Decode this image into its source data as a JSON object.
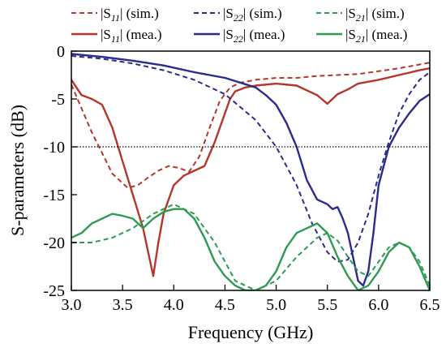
{
  "chart_data": {
    "type": "line",
    "xlabel": "Frequency (GHz)",
    "ylabel": "S-parameters (dB)",
    "xlim": [
      3.0,
      6.5
    ],
    "ylim": [
      -25,
      0
    ],
    "xticks": [
      "3.0",
      "3.5",
      "4.0",
      "4.5",
      "5.0",
      "5.5",
      "6.0",
      "6.5"
    ],
    "yticks": [
      "0",
      "-5",
      "-10",
      "-15",
      "-20",
      "-25"
    ],
    "reference_line": -10,
    "legend_position": "top, above plot, two rows",
    "series": [
      {
        "param": "11",
        "kind": "sim.",
        "color": "#b5362a",
        "dash": true,
        "x": [
          3.0,
          3.2,
          3.4,
          3.55,
          3.65,
          3.75,
          3.85,
          3.95,
          4.05,
          4.15,
          4.25,
          4.35,
          4.45,
          4.55,
          4.65,
          4.8,
          5.0,
          5.2,
          5.4,
          5.6,
          5.8,
          6.0,
          6.2,
          6.4,
          6.5
        ],
        "y": [
          -3.5,
          -8.5,
          -12.8,
          -14.3,
          -14.0,
          -13.2,
          -12.5,
          -12.0,
          -12.2,
          -12.6,
          -11.0,
          -8.0,
          -5.2,
          -3.8,
          -3.3,
          -3.0,
          -2.8,
          -2.8,
          -2.6,
          -2.5,
          -2.4,
          -2.1,
          -1.8,
          -1.4,
          -1.2
        ]
      },
      {
        "param": "11",
        "kind": "mea.",
        "color": "#b5362a",
        "dash": false,
        "x": [
          3.0,
          3.1,
          3.2,
          3.3,
          3.4,
          3.5,
          3.6,
          3.7,
          3.75,
          3.8,
          3.85,
          3.9,
          4.0,
          4.1,
          4.2,
          4.3,
          4.4,
          4.5,
          4.55,
          4.6,
          4.7,
          4.8,
          5.0,
          5.2,
          5.4,
          5.5,
          5.6,
          5.7,
          5.8,
          6.0,
          6.2,
          6.4,
          6.5
        ],
        "y": [
          -3.0,
          -4.6,
          -5.0,
          -5.6,
          -8.0,
          -11.5,
          -15.0,
          -18.5,
          -21.0,
          -23.5,
          -20.0,
          -17.0,
          -14.0,
          -13.0,
          -12.5,
          -12.0,
          -9.5,
          -6.5,
          -5.0,
          -4.2,
          -3.8,
          -3.6,
          -3.4,
          -3.6,
          -4.6,
          -5.5,
          -4.5,
          -4.0,
          -3.4,
          -3.0,
          -2.5,
          -2.0,
          -1.8
        ]
      },
      {
        "param": "22",
        "kind": "sim.",
        "color": "#2b2b8c",
        "dash": true,
        "x": [
          3.0,
          3.3,
          3.6,
          3.9,
          4.2,
          4.5,
          4.8,
          5.0,
          5.2,
          5.35,
          5.5,
          5.6,
          5.7,
          5.8,
          5.9,
          6.0,
          6.1,
          6.2,
          6.3,
          6.4,
          6.5
        ],
        "y": [
          -0.5,
          -0.8,
          -1.3,
          -2.0,
          -3.0,
          -4.5,
          -7.2,
          -10.0,
          -14.0,
          -18.0,
          -21.0,
          -22.0,
          -21.8,
          -20.0,
          -17.0,
          -13.0,
          -9.5,
          -6.5,
          -4.5,
          -3.0,
          -2.2
        ]
      },
      {
        "param": "22",
        "kind": "mea.",
        "color": "#2b2b8c",
        "dash": false,
        "x": [
          3.0,
          3.3,
          3.6,
          3.9,
          4.2,
          4.5,
          4.8,
          4.9,
          5.0,
          5.1,
          5.2,
          5.3,
          5.4,
          5.5,
          5.55,
          5.6,
          5.65,
          5.7,
          5.75,
          5.8,
          5.85,
          5.9,
          5.95,
          6.0,
          6.1,
          6.2,
          6.3,
          6.4,
          6.5
        ],
        "y": [
          -0.3,
          -0.6,
          -1.0,
          -1.5,
          -2.2,
          -2.8,
          -3.8,
          -4.6,
          -5.6,
          -7.5,
          -10.0,
          -13.5,
          -15.5,
          -16.0,
          -16.5,
          -16.3,
          -17.5,
          -19.0,
          -21.5,
          -24.0,
          -24.5,
          -23.0,
          -19.0,
          -14.0,
          -10.0,
          -8.0,
          -6.5,
          -5.2,
          -4.5
        ]
      },
      {
        "param": "21",
        "kind": "sim.",
        "color": "#2e9a52",
        "dash": true,
        "x": [
          3.0,
          3.2,
          3.4,
          3.6,
          3.8,
          4.0,
          4.2,
          4.4,
          4.6,
          4.8,
          5.0,
          5.2,
          5.4,
          5.5,
          5.6,
          5.7,
          5.8,
          5.9,
          6.0,
          6.1,
          6.2,
          6.3,
          6.4,
          6.5
        ],
        "y": [
          -20.0,
          -20.0,
          -19.5,
          -18.5,
          -17.0,
          -16.0,
          -17.0,
          -20.0,
          -24.0,
          -25.0,
          -24.0,
          -21.5,
          -19.5,
          -19.0,
          -19.8,
          -21.5,
          -23.0,
          -23.5,
          -22.0,
          -20.5,
          -20.0,
          -20.5,
          -22.0,
          -24.5
        ]
      },
      {
        "param": "21",
        "kind": "mea.",
        "color": "#2e9a52",
        "dash": false,
        "x": [
          3.0,
          3.1,
          3.2,
          3.3,
          3.4,
          3.5,
          3.6,
          3.7,
          3.8,
          3.9,
          4.0,
          4.1,
          4.2,
          4.3,
          4.4,
          4.5,
          4.6,
          4.7,
          4.8,
          4.9,
          5.0,
          5.1,
          5.2,
          5.3,
          5.4,
          5.5,
          5.6,
          5.7,
          5.8,
          5.9,
          6.0,
          6.1,
          6.2,
          6.3,
          6.4,
          6.5
        ],
        "y": [
          -19.5,
          -19.0,
          -18.0,
          -17.5,
          -17.0,
          -17.2,
          -17.5,
          -18.5,
          -17.5,
          -16.8,
          -16.5,
          -16.5,
          -17.5,
          -19.5,
          -22.0,
          -23.5,
          -24.5,
          -25.0,
          -25.0,
          -24.5,
          -23.0,
          -20.5,
          -19.0,
          -18.5,
          -18.0,
          -19.0,
          -21.5,
          -23.5,
          -25.0,
          -24.5,
          -23.0,
          -21.0,
          -20.0,
          -20.5,
          -22.5,
          -25.0
        ]
      }
    ]
  },
  "legend": [
    {
      "prefix": "|S",
      "sub": "11",
      "suffix": "| (sim.)"
    },
    {
      "prefix": "|S",
      "sub": "22",
      "suffix": "| (sim.)"
    },
    {
      "prefix": "|S",
      "sub": "21",
      "suffix": "| (sim.)"
    },
    {
      "prefix": "|S",
      "sub": "11",
      "suffix": "| (mea.)"
    },
    {
      "prefix": "|S",
      "sub": "22",
      "suffix": "| (mea.)"
    },
    {
      "prefix": "|S",
      "sub": "21",
      "suffix": "| (mea.)"
    }
  ]
}
